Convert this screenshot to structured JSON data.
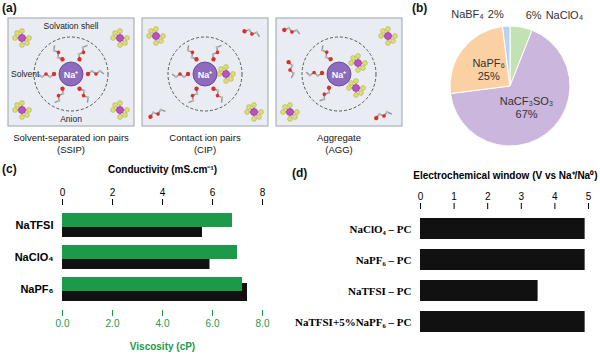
{
  "chart_data": [
    {
      "type": "diagram",
      "label": "(a)",
      "ion": "Na⁺",
      "annotations": [
        "Solvation shell",
        "Solvent",
        "Anion"
      ],
      "panels": [
        {
          "name": "Solvent-separated ion pairs",
          "abbreviation": "(SSIP)"
        },
        {
          "name": "Contact ion pairs",
          "abbreviation": "(CIP)"
        },
        {
          "name": "Aggregate",
          "abbreviation": "(AGG)"
        }
      ]
    },
    {
      "type": "pie",
      "label": "(b)",
      "categories": [
        "NaClO₄",
        "NaCF₃SO₃",
        "NaPF₆",
        "NaBF₄"
      ],
      "values": [
        6,
        67,
        25,
        2
      ],
      "value_labels": [
        "6%",
        "67%",
        "25%",
        "2%"
      ],
      "colors": [
        "#c3e2b3",
        "#cbb6dd",
        "#fbd0a3",
        "#b9d4ec"
      ],
      "data_labels": true
    },
    {
      "type": "bar",
      "label": "(c)",
      "orientation": "horizontal",
      "categories": [
        "NaTFSI",
        "NaClO₄",
        "NaPF₆"
      ],
      "series": [
        {
          "name": "Conductivity (mS.cm⁻¹)",
          "color": "#111111",
          "values": [
            5.6,
            5.9,
            7.4
          ]
        },
        {
          "name": "Viscosity (cP)",
          "color": "#1a9a4a",
          "values": [
            6.8,
            7.0,
            7.2
          ],
          "axis": "x2"
        }
      ],
      "xlim": [
        0,
        8
      ],
      "xticks": [
        0,
        2,
        4,
        6,
        8
      ],
      "x2lim": [
        0,
        8
      ],
      "x2ticks": [
        {
          "value": 0,
          "label": "0.0"
        },
        {
          "value": 2,
          "label": "2.0"
        },
        {
          "value": 4,
          "label": "4.0"
        },
        {
          "value": 6,
          "label": "6.0"
        },
        {
          "value": 8,
          "label": "8.0"
        }
      ]
    },
    {
      "type": "bar",
      "label": "(d)",
      "orientation": "horizontal",
      "xlabel": "Electrochemical window (V vs Na⁺/Na⁰)",
      "categories": [
        "NaClO₄ – PC",
        "NaPF₆ – PC",
        "NaTFSI – PC",
        "NaTFSI+5%NaPF₆ – PC"
      ],
      "values": [
        4.9,
        4.9,
        3.5,
        4.9
      ],
      "color": "#111111",
      "xlim": [
        0,
        5
      ],
      "xticks": [
        0,
        1,
        2,
        3,
        4,
        5
      ]
    }
  ]
}
